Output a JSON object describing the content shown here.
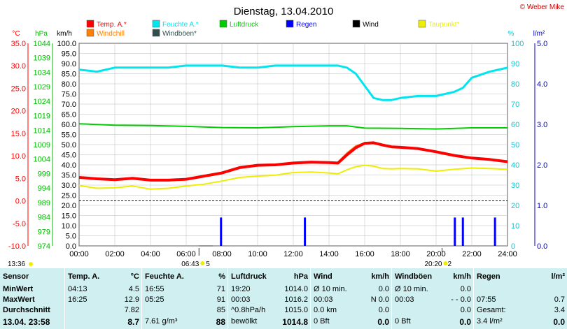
{
  "chart_data": {
    "type": "line",
    "title": "Dienstag, 13.04.2010",
    "copyright": "© Weber Mike",
    "legend": [
      {
        "name": "Temp. A.*",
        "color": "#ff0000"
      },
      {
        "name": "Feuchte A.*",
        "color": "#00e5ee"
      },
      {
        "name": "Luftdruck",
        "color": "#00cc00"
      },
      {
        "name": "Regen",
        "color": "#0000ff"
      },
      {
        "name": "Wind",
        "color": "#000000"
      },
      {
        "name": "Taupunkt*",
        "color": "#eeee00"
      },
      {
        "name": "Windchill",
        "color": "#ff8000"
      },
      {
        "name": "Windböen*",
        "color": "#2f4f4f"
      }
    ],
    "axes": {
      "temp": {
        "unit": "°C",
        "ticks": [
          "35.0",
          "30.0",
          "25.0",
          "20.0",
          "15.0",
          "10.0",
          "5.0",
          "0.0",
          "-5.0",
          "-10.0"
        ],
        "range": [
          -10,
          35
        ],
        "color": "#ff0000"
      },
      "pressure": {
        "unit": "hPa",
        "ticks": [
          "1044",
          "1039",
          "1034",
          "1029",
          "1024",
          "1019",
          "1014",
          "1009",
          "1004",
          "999",
          "994",
          "989",
          "984",
          "979",
          "974"
        ],
        "range": [
          974,
          1044
        ],
        "color": "#00bb00"
      },
      "wind": {
        "unit": "km/h",
        "ticks": [
          "100.0",
          "95.0",
          "90.0",
          "85.0",
          "80.0",
          "75.0",
          "70.0",
          "65.0",
          "60.0",
          "55.0",
          "50.0",
          "45.0",
          "40.0",
          "35.0",
          "30.0",
          "25.0",
          "20.0",
          "15.0",
          "10.0",
          "5.0",
          "0.0"
        ],
        "range": [
          0,
          100
        ],
        "color": "#000000"
      },
      "humidity": {
        "unit": "%",
        "ticks": [
          "100",
          "90",
          "80",
          "70",
          "60",
          "50",
          "40",
          "30",
          "20",
          "10",
          "0"
        ],
        "range": [
          0,
          100
        ],
        "color": "#00c8d8"
      },
      "rain": {
        "unit": "l/m²",
        "ticks": [
          "5.0",
          "4.0",
          "3.0",
          "2.0",
          "1.0",
          "0.0"
        ],
        "range": [
          0,
          5
        ],
        "color": "#0000cc"
      },
      "x": {
        "ticks": [
          "00:00",
          "02:00",
          "04:00",
          "06:00",
          "08:00",
          "10:00",
          "12:00",
          "14:00",
          "16:00",
          "18:00",
          "20:00",
          "22:00",
          "24:00"
        ],
        "range": [
          0,
          24
        ]
      }
    },
    "markers": {
      "left_time": "13:36",
      "sunrise": "06:43",
      "sunrise_extra": "5",
      "sunset": "20:20",
      "sunset_extra": "2"
    },
    "zero_line_temp": 0.0,
    "series": [
      {
        "name": "Temp. A.*",
        "axis": "temp",
        "x": [
          0,
          1,
          2,
          3,
          4,
          5,
          6,
          7,
          8,
          9,
          10,
          11,
          12,
          13,
          14,
          14.5,
          15,
          15.5,
          16,
          16.5,
          17,
          17.5,
          18,
          19,
          20,
          21,
          22,
          23,
          24
        ],
        "y": [
          5.2,
          4.9,
          4.7,
          5.0,
          4.6,
          4.6,
          4.8,
          5.5,
          6.2,
          7.4,
          7.9,
          8.0,
          8.4,
          8.6,
          8.5,
          8.4,
          10.2,
          11.8,
          12.8,
          12.9,
          12.4,
          12.0,
          11.9,
          11.6,
          10.9,
          10.1,
          9.5,
          9.2,
          8.7
        ]
      },
      {
        "name": "Windchill",
        "axis": "temp",
        "x": [
          14.5,
          15,
          15.5,
          16,
          16.5,
          17
        ],
        "y": [
          8.6,
          10.6,
          12.2,
          12.9,
          12.8,
          12.3
        ]
      },
      {
        "name": "Taupunkt*",
        "axis": "temp",
        "x": [
          0,
          1,
          2,
          3,
          4,
          5,
          6,
          7,
          8,
          9,
          10,
          11,
          12,
          13,
          14,
          14.5,
          15,
          15.5,
          16,
          16.5,
          17,
          17.5,
          18,
          19,
          20,
          21,
          22,
          23,
          24
        ],
        "y": [
          3.4,
          2.8,
          2.9,
          3.3,
          2.6,
          2.8,
          3.3,
          3.7,
          4.4,
          5.2,
          5.5,
          5.7,
          6.3,
          6.4,
          6.2,
          6.0,
          6.9,
          7.6,
          7.9,
          7.7,
          7.2,
          7.1,
          7.2,
          7.1,
          6.6,
          7.0,
          7.3,
          7.2,
          7.0
        ]
      },
      {
        "name": "Feuchte A.*",
        "axis": "humidity",
        "x": [
          0,
          1,
          2,
          3,
          4,
          5,
          6,
          7,
          8,
          9,
          10,
          11,
          12,
          13,
          14,
          14.5,
          15,
          15.5,
          16,
          16.5,
          17,
          17.5,
          18,
          19,
          20,
          21,
          21.5,
          22,
          23,
          24
        ],
        "y": [
          87,
          86,
          88,
          88,
          88,
          88,
          89,
          89,
          89,
          88,
          88,
          89,
          89,
          89,
          89,
          89,
          88,
          85,
          79,
          73,
          72,
          72,
          73,
          74,
          74,
          76,
          78,
          83,
          86,
          88
        ]
      },
      {
        "name": "Luftdruck",
        "axis": "pressure",
        "x": [
          0,
          2,
          4,
          6,
          8,
          10,
          12,
          14,
          15,
          16,
          18,
          20,
          22,
          24
        ],
        "y": [
          1016.2,
          1015.7,
          1015.6,
          1015.3,
          1014.9,
          1014.8,
          1015.2,
          1015.5,
          1015.5,
          1014.7,
          1014.6,
          1014.4,
          1014.8,
          1014.8
        ]
      },
      {
        "name": "Regen",
        "axis": "rain",
        "type": "bar",
        "x": [
          7.95,
          12.65,
          21.05,
          21.5,
          23.3
        ],
        "y": [
          0.7,
          0.7,
          0.7,
          0.7,
          0.7
        ]
      }
    ]
  },
  "stats": {
    "sensor": {
      "header": "Sensor",
      "rows": [
        "MinWert",
        "MaxWert",
        "Durchschnitt",
        "13.04. 23:58"
      ]
    },
    "temp": {
      "header": "Temp. A.",
      "unit": "°C",
      "rows": [
        [
          "04:13",
          "4.5"
        ],
        [
          "16:25",
          "12.9"
        ],
        [
          "",
          "7.82"
        ],
        [
          "",
          "8.7"
        ]
      ]
    },
    "feuchte": {
      "header": "Feuchte A.",
      "unit": "%",
      "rows": [
        [
          "16:55",
          "71"
        ],
        [
          "05:25",
          "91"
        ],
        [
          "",
          "85"
        ],
        [
          "7.61 g/m³",
          "88"
        ]
      ]
    },
    "luftdruck": {
      "header": "Luftdruck",
      "unit": "hPa",
      "rows": [
        [
          "19:20",
          "1014.0"
        ],
        [
          "00:03",
          "1016.2"
        ],
        [
          "^0.8hPa/h",
          "1015.0"
        ],
        [
          "bewölkt",
          "1014.8"
        ]
      ]
    },
    "wind": {
      "header": "Wind",
      "unit": "km/h",
      "rows": [
        [
          "Ø 10 min.",
          "0.0"
        ],
        [
          "00:03",
          "N 0.0"
        ],
        [
          "0.0 km",
          "0.0"
        ],
        [
          "0 Bft",
          "0.0"
        ]
      ]
    },
    "windboen": {
      "header": "Windböen",
      "unit": "km/h",
      "rows": [
        [
          "Ø 10 min.",
          "0.0"
        ],
        [
          "00:03",
          "- - 0.0"
        ],
        [
          "",
          "0.0"
        ],
        [
          "0 Bft",
          "0.0"
        ]
      ]
    },
    "regen": {
      "header": "Regen",
      "unit": "l/m²",
      "rows": [
        [
          "",
          ""
        ],
        [
          "07:55",
          "0.7"
        ],
        [
          "Gesamt:",
          "3.4"
        ],
        [
          "3.4 l/m²",
          "0.0"
        ]
      ]
    }
  }
}
